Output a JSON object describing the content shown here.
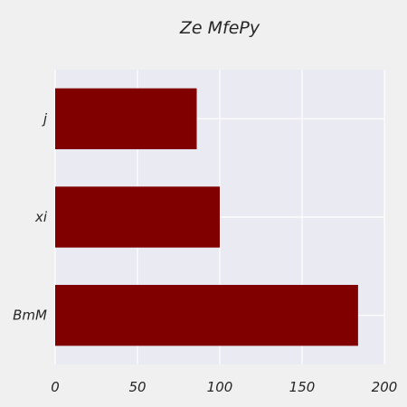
{
  "chart_data": {
    "type": "bar",
    "orientation": "horizontal",
    "title": "Ze  MfePy",
    "xlabel": "",
    "ylabel": "",
    "categories": [
      "j",
      "xi",
      "BmM"
    ],
    "values": [
      86,
      100,
      184
    ],
    "xlim": [
      0,
      200
    ],
    "xticks": [
      "0",
      "50",
      "100",
      "150",
      "200"
    ],
    "grid": true,
    "colors": {
      "bar": "#800000",
      "plot_background": "#eaeaf2",
      "figure_background": "#f0f0f0",
      "grid": "#ffffff",
      "text": "#262626"
    }
  }
}
